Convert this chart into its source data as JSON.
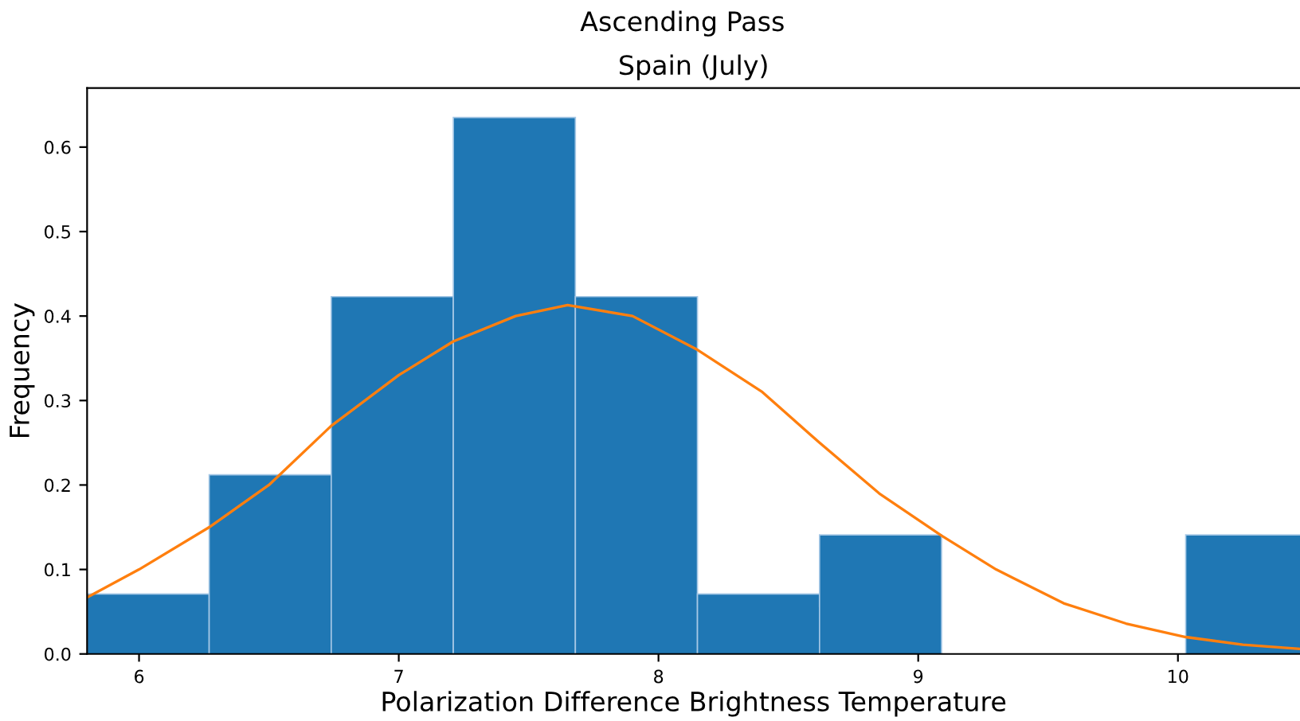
{
  "chart_data": {
    "type": "histogram",
    "title": "Spain (July)",
    "subtitle": "Ascending Pass",
    "xlabel": "Polarization Difference Brightness Temperature",
    "ylabel": "Frequency",
    "bins": [
      5.8,
      6.27,
      6.74,
      7.21,
      7.68,
      8.15,
      8.62,
      9.09,
      9.56,
      10.03,
      10.5
    ],
    "values": [
      0.071,
      0.212,
      0.423,
      0.635,
      0.423,
      0.071,
      0.141,
      0,
      0,
      0.141
    ],
    "color": "#1f77b4",
    "series": [
      {
        "type": "line",
        "color": "#ff7f0e",
        "x": [
          5.8,
          6.0,
          6.27,
          6.5,
          6.74,
          7.0,
          7.21,
          7.45,
          7.65,
          7.9,
          8.15,
          8.4,
          8.62,
          8.85,
          9.09,
          9.3,
          9.56,
          9.8,
          10.03,
          10.25,
          10.47
        ],
        "values": [
          0.067,
          0.1,
          0.15,
          0.2,
          0.27,
          0.33,
          0.37,
          0.4,
          0.413,
          0.4,
          0.36,
          0.31,
          0.25,
          0.19,
          0.14,
          0.1,
          0.06,
          0.036,
          0.02,
          0.011,
          0.006
        ]
      }
    ],
    "xlim": [
      5.8,
      10.47
    ],
    "ylim": [
      0,
      0.67
    ],
    "xticks": [
      6,
      7,
      8,
      9,
      10
    ],
    "yticks": [
      {
        "value": 0,
        "label": "0.0"
      },
      0.1,
      0.2,
      0.3,
      0.4,
      0.5,
      0.6
    ],
    "grid": false
  }
}
